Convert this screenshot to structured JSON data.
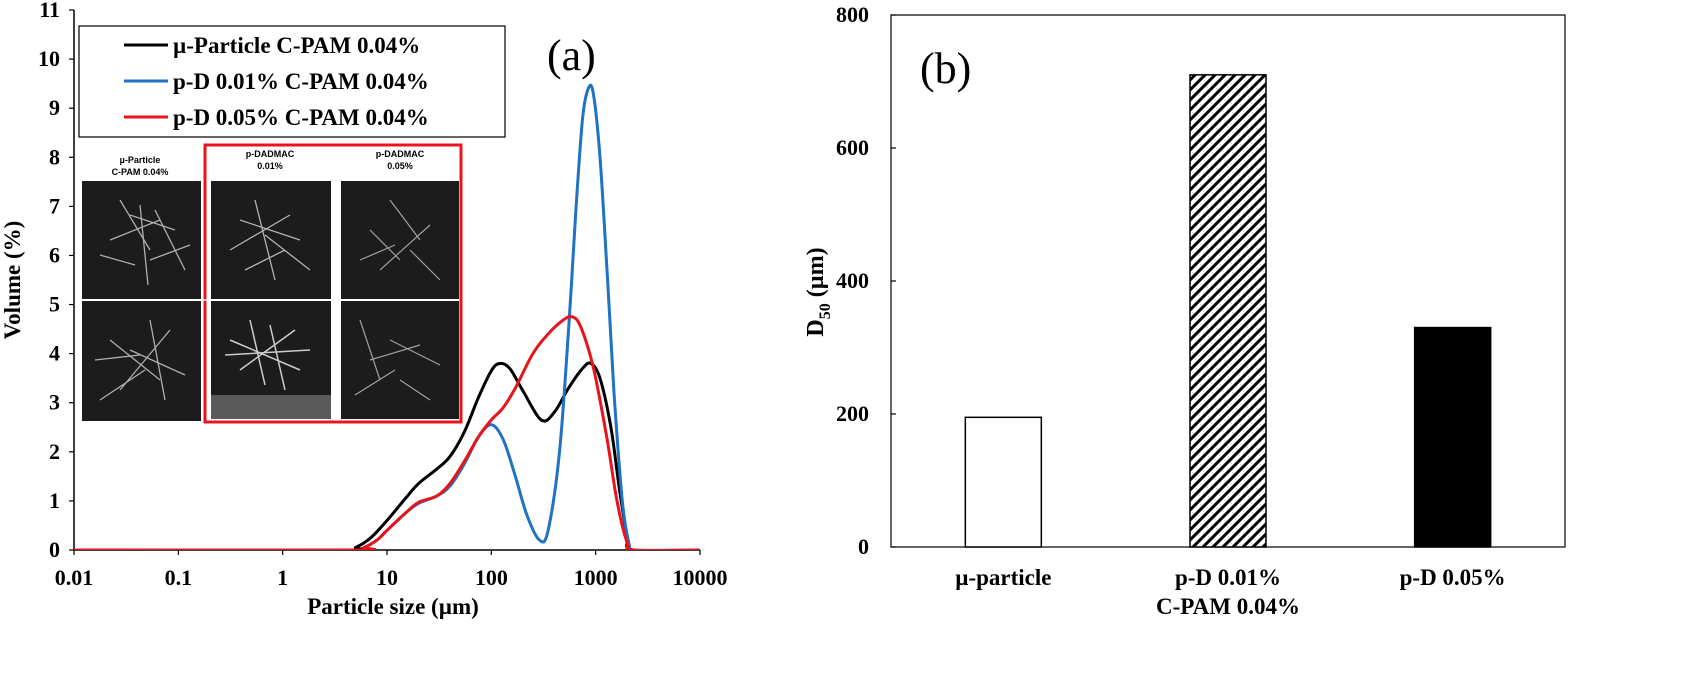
{
  "chart_data": [
    {
      "panel": "(a)",
      "type": "line",
      "xlabel": "Particle size (µm)",
      "ylabel": "Volume (%)",
      "x_scale": "log",
      "xlim": [
        0.01,
        10000
      ],
      "ylim": [
        0,
        11
      ],
      "x_ticks": [
        "0.01",
        "0.1",
        "1",
        "10",
        "100",
        "1000",
        "10000"
      ],
      "y_ticks": [
        "0",
        "1",
        "2",
        "3",
        "4",
        "5",
        "6",
        "7",
        "8",
        "9",
        "10",
        "11"
      ],
      "legend_position": "top-left",
      "series": [
        {
          "name": "µ-Particle C-PAM 0.04%",
          "color": "#000000",
          "points": [
            [
              0.01,
              0
            ],
            [
              4,
              0
            ],
            [
              5,
              0.05
            ],
            [
              7,
              0.25
            ],
            [
              10,
              0.6
            ],
            [
              15,
              1.05
            ],
            [
              20,
              1.35
            ],
            [
              30,
              1.65
            ],
            [
              40,
              1.9
            ],
            [
              55,
              2.4
            ],
            [
              75,
              3.1
            ],
            [
              100,
              3.65
            ],
            [
              120,
              3.8
            ],
            [
              150,
              3.7
            ],
            [
              200,
              3.25
            ],
            [
              300,
              2.65
            ],
            [
              400,
              2.8
            ],
            [
              550,
              3.3
            ],
            [
              750,
              3.7
            ],
            [
              900,
              3.8
            ],
            [
              1100,
              3.5
            ],
            [
              1400,
              2.5
            ],
            [
              1700,
              1.2
            ],
            [
              2000,
              0.3
            ],
            [
              2300,
              0
            ],
            [
              10000,
              0
            ]
          ]
        },
        {
          "name": "p-D 0.01% C-PAM 0.04%",
          "color": "#1f72c4",
          "points": [
            [
              0.01,
              0
            ],
            [
              4.5,
              0
            ],
            [
              6,
              0.05
            ],
            [
              8,
              0.2
            ],
            [
              10,
              0.4
            ],
            [
              15,
              0.75
            ],
            [
              20,
              0.95
            ],
            [
              30,
              1.1
            ],
            [
              40,
              1.3
            ],
            [
              55,
              1.75
            ],
            [
              75,
              2.3
            ],
            [
              100,
              2.55
            ],
            [
              130,
              2.25
            ],
            [
              170,
              1.5
            ],
            [
              220,
              0.7
            ],
            [
              290,
              0.2
            ],
            [
              350,
              0.4
            ],
            [
              450,
              2.0
            ],
            [
              550,
              4.5
            ],
            [
              650,
              7.0
            ],
            [
              750,
              8.8
            ],
            [
              850,
              9.4
            ],
            [
              950,
              9.3
            ],
            [
              1100,
              8.0
            ],
            [
              1300,
              5.5
            ],
            [
              1500,
              3.2
            ],
            [
              1800,
              1.0
            ],
            [
              2100,
              0.1
            ],
            [
              2300,
              0
            ],
            [
              10000,
              0
            ]
          ]
        },
        {
          "name": "p-D 0.05% C-PAM 0.04%",
          "color": "#e8141b",
          "points": [
            [
              0.01,
              0
            ],
            [
              4.5,
              0
            ],
            [
              6,
              0.05
            ],
            [
              8,
              0.2
            ],
            [
              10,
              0.4
            ],
            [
              15,
              0.75
            ],
            [
              20,
              0.97
            ],
            [
              30,
              1.1
            ],
            [
              40,
              1.35
            ],
            [
              55,
              1.8
            ],
            [
              75,
              2.3
            ],
            [
              100,
              2.65
            ],
            [
              130,
              2.9
            ],
            [
              170,
              3.3
            ],
            [
              250,
              4.0
            ],
            [
              350,
              4.4
            ],
            [
              500,
              4.7
            ],
            [
              600,
              4.75
            ],
            [
              700,
              4.6
            ],
            [
              850,
              4.1
            ],
            [
              1000,
              3.5
            ],
            [
              1300,
              2.2
            ],
            [
              1600,
              1.0
            ],
            [
              2000,
              0.15
            ],
            [
              2300,
              0
            ],
            [
              10000,
              0
            ]
          ]
        }
      ],
      "annotation": "(a)",
      "inset": {
        "columns": [
          {
            "caption_lines": [
              "µ-Particle",
              "C-PAM 0.04%"
            ],
            "highlighted": false
          },
          {
            "caption_lines": [
              "p-DADMAC",
              "0.01%"
            ],
            "highlighted": true
          },
          {
            "caption_lines": [
              "p-DADMAC",
              "0.05%"
            ],
            "highlighted": true
          }
        ],
        "highlight_color": "#e8141b"
      }
    },
    {
      "panel": "(b)",
      "type": "bar",
      "categories": [
        [
          "µ-particle"
        ],
        [
          "p-D 0.01%",
          "C-PAM 0.04%"
        ],
        [
          "p-D 0.05%"
        ]
      ],
      "values": [
        195,
        710,
        330
      ],
      "fills": [
        "white",
        "hatched",
        "black"
      ],
      "ylabel": "D",
      "ylabel_sub": "50",
      "ylabel_unit": " (µm)",
      "ylim": [
        0,
        800
      ],
      "y_ticks": [
        "0",
        "200",
        "400",
        "600",
        "800"
      ],
      "annotation": "(b)"
    }
  ]
}
